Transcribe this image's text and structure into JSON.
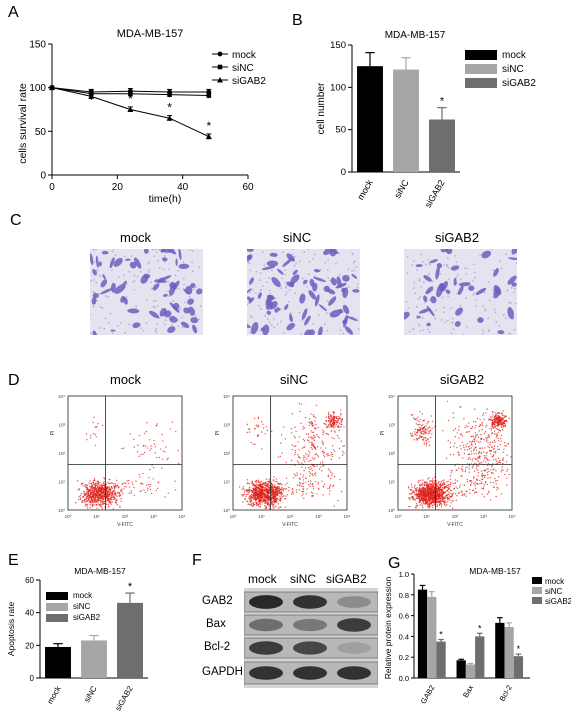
{
  "panels": {
    "a": "A",
    "b": "B",
    "c": "C",
    "d": "D",
    "e": "E",
    "f": "F",
    "g": "G"
  },
  "conditions": [
    "mock",
    "siNC",
    "siGAB2"
  ],
  "chart_data": [
    {
      "id": "A",
      "type": "line",
      "title": "MDA-MB-157",
      "xlabel": "time(h)",
      "ylabel": "cells survival rate",
      "xlim": [
        0,
        60
      ],
      "ylim": [
        0,
        150
      ],
      "xticks": [
        "0",
        "20",
        "40",
        "60"
      ],
      "yticks": [
        "0",
        "50",
        "100",
        "150"
      ],
      "x": [
        0,
        12,
        24,
        36,
        48
      ],
      "series": [
        {
          "name": "mock",
          "values": [
            100,
            95,
            96,
            95,
            95
          ],
          "err": [
            0,
            3,
            3,
            3,
            3
          ]
        },
        {
          "name": "siNC",
          "values": [
            100,
            93,
            93,
            92,
            91
          ],
          "err": [
            0,
            4,
            3,
            3,
            3
          ]
        },
        {
          "name": "siGAB2",
          "values": [
            100,
            90,
            75,
            65,
            44
          ],
          "err": [
            0,
            4,
            3,
            3,
            3
          ]
        }
      ],
      "annotations": [
        "*",
        "*",
        "*"
      ],
      "legend": "top-right"
    },
    {
      "id": "B",
      "type": "bar",
      "title": "MDA-MB-157",
      "ylabel": "cell number",
      "categories": [
        "mock",
        "siNC",
        "siGAB2"
      ],
      "values": [
        125,
        121,
        62
      ],
      "err": [
        16,
        14,
        14
      ],
      "ylim": [
        0,
        150
      ],
      "yticks": [
        "0",
        "50",
        "100",
        "150"
      ],
      "colors": [
        "#000000",
        "#a6a6a6",
        "#6e6e6e"
      ],
      "annotations": [
        "",
        "",
        "*"
      ],
      "legend": "top-right"
    },
    {
      "id": "E",
      "type": "bar",
      "title": "MDA-MB-157",
      "ylabel": "Apoptosis rate",
      "categories": [
        "mock",
        "siNC",
        "siGAB2"
      ],
      "values": [
        19,
        23,
        46
      ],
      "err": [
        2,
        3,
        6
      ],
      "ylim": [
        0,
        60
      ],
      "yticks": [
        "0",
        "20",
        "40",
        "60"
      ],
      "colors": [
        "#000000",
        "#a6a6a6",
        "#6e6e6e"
      ],
      "annotations": [
        "",
        "",
        "*"
      ],
      "legend": "top-left"
    },
    {
      "id": "G",
      "type": "bar",
      "title": "MDA-MB-157",
      "ylabel": "Relative protein expression",
      "categories": [
        "GAB2",
        "Bax",
        "Bcl-2"
      ],
      "series": [
        {
          "name": "mock",
          "values": [
            0.85,
            0.17,
            0.53
          ],
          "err": [
            0.04,
            0.01,
            0.05
          ]
        },
        {
          "name": "siNC",
          "values": [
            0.78,
            0.13,
            0.49
          ],
          "err": [
            0.05,
            0.01,
            0.04
          ]
        },
        {
          "name": "siGAB2",
          "values": [
            0.35,
            0.4,
            0.21
          ],
          "err": [
            0.02,
            0.03,
            0.02
          ]
        }
      ],
      "ylim": [
        0,
        1.0
      ],
      "yticks": [
        "0.0",
        "0.2",
        "0.4",
        "0.6",
        "0.8",
        "1.0"
      ],
      "colors": [
        "#000000",
        "#a6a6a6",
        "#6e6e6e"
      ],
      "annotations": [
        "*",
        "*",
        "*"
      ],
      "legend": "top-right"
    }
  ],
  "flow": {
    "xlabel": "V-FITC",
    "ylabel": "PI",
    "ticks": [
      "10⁰",
      "10¹",
      "10²",
      "10³",
      "10⁴"
    ],
    "dot_color": "#e0201a"
  },
  "western": {
    "columns": [
      "mock",
      "siNC",
      "siGAB2"
    ],
    "rows": [
      "GAB2",
      "Bax",
      "Bcl-2",
      "GAPDH"
    ]
  }
}
